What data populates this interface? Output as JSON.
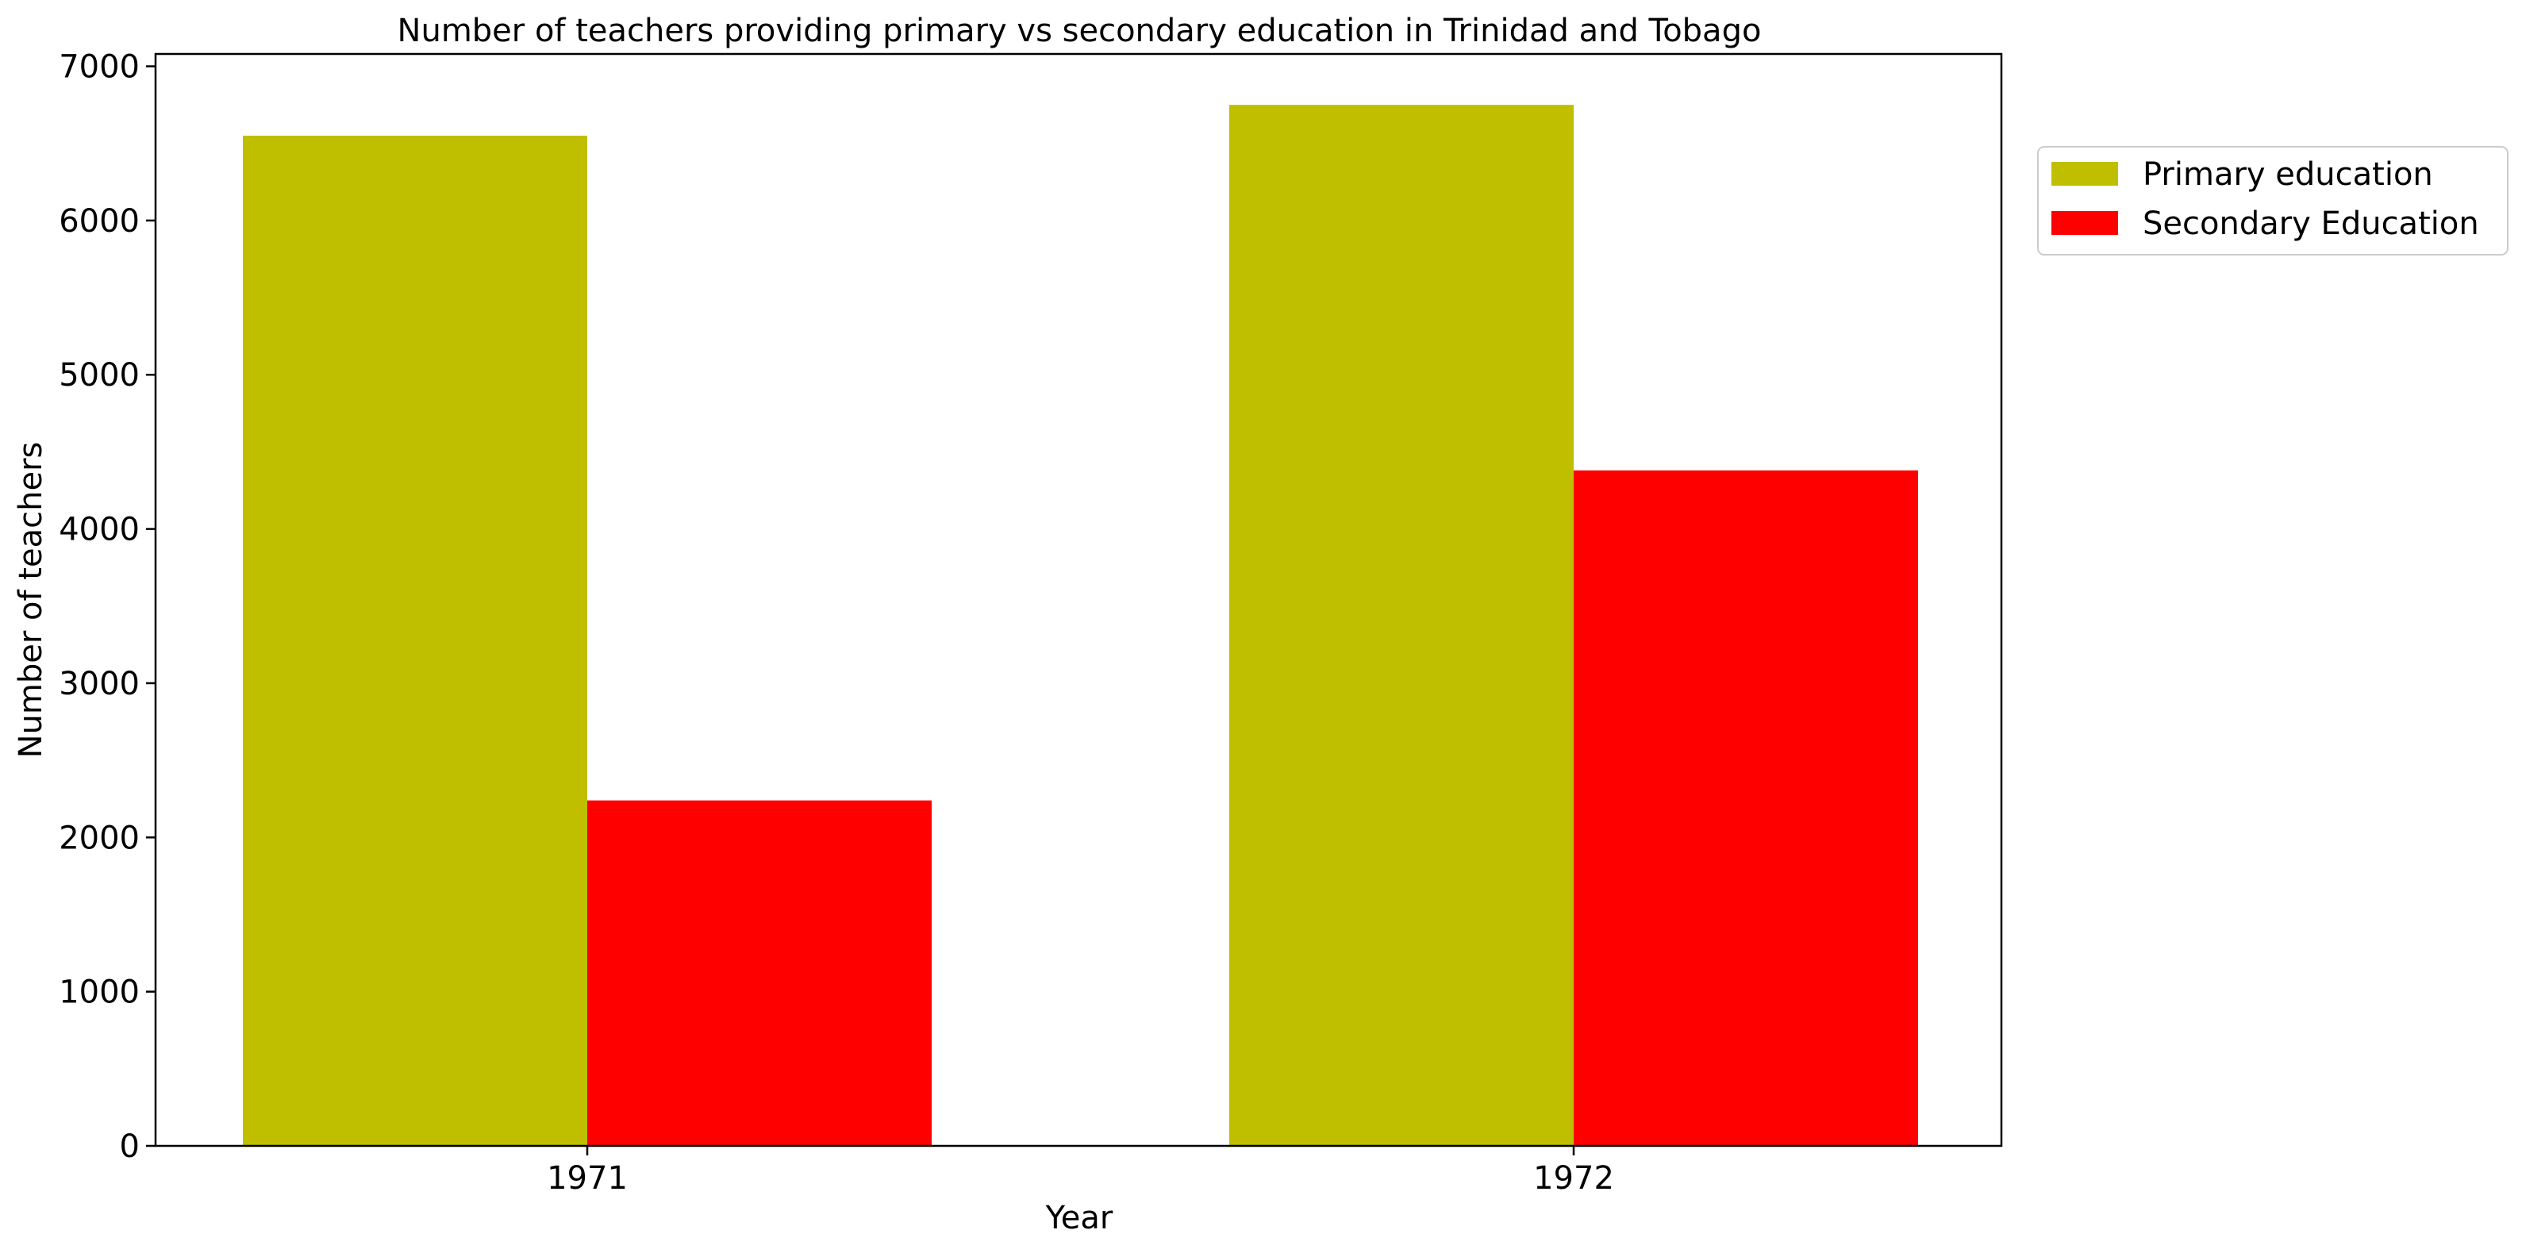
{
  "chart_data": {
    "type": "bar",
    "title": "Number of teachers providing primary vs secondary education in Trinidad and Tobago",
    "xlabel": "Year",
    "ylabel": "Number of teachers",
    "categories": [
      "1971",
      "1972"
    ],
    "series": [
      {
        "name": "Primary education",
        "values": [
          6550,
          6750
        ],
        "color": "#bfbf00"
      },
      {
        "name": "Secondary Education",
        "values": [
          2240,
          4380
        ],
        "color": "#ff0000"
      }
    ],
    "ylim": [
      0,
      7080
    ],
    "yticks": [
      0,
      1000,
      2000,
      3000,
      4000,
      5000,
      6000,
      7000
    ],
    "grid": false,
    "legend_position": "outside-top-right"
  }
}
